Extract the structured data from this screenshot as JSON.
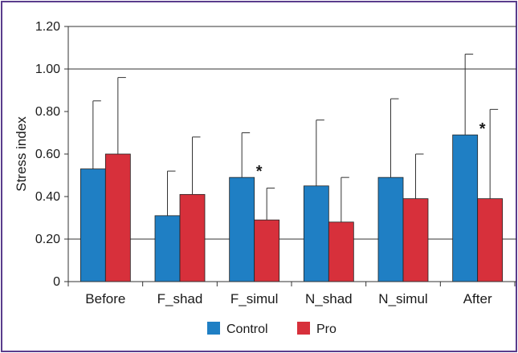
{
  "chart_data": {
    "type": "bar",
    "categories": [
      "Before",
      "F_shad",
      "F_simul",
      "N_shad",
      "N_simul",
      "After"
    ],
    "series": [
      {
        "name": "Control",
        "color": "#1f7fc4",
        "values": [
          0.53,
          0.31,
          0.49,
          0.45,
          0.49,
          0.69
        ],
        "error_upper": [
          0.85,
          0.52,
          0.7,
          0.76,
          0.86,
          1.07
        ]
      },
      {
        "name": "Pro",
        "color": "#d7303b",
        "values": [
          0.6,
          0.41,
          0.29,
          0.28,
          0.39,
          0.39
        ],
        "error_upper": [
          0.96,
          0.68,
          0.44,
          0.49,
          0.6,
          0.81
        ]
      }
    ],
    "significance_markers": [
      {
        "category": "F_simul",
        "label": "*"
      },
      {
        "category": "After",
        "label": "*"
      }
    ],
    "ylabel": "Stress index",
    "xlabel": "",
    "ylim": [
      0,
      1.2
    ],
    "yticks": [
      "0",
      "0.20",
      "0.40",
      "0.60",
      "0.80",
      "1.00",
      "1.20"
    ],
    "ytick_values": [
      0,
      0.2,
      0.4,
      0.6,
      0.8,
      1.0,
      1.2
    ],
    "gridlines": [
      0.2,
      1.0,
      1.2
    ],
    "legend_position": "bottom-center"
  }
}
